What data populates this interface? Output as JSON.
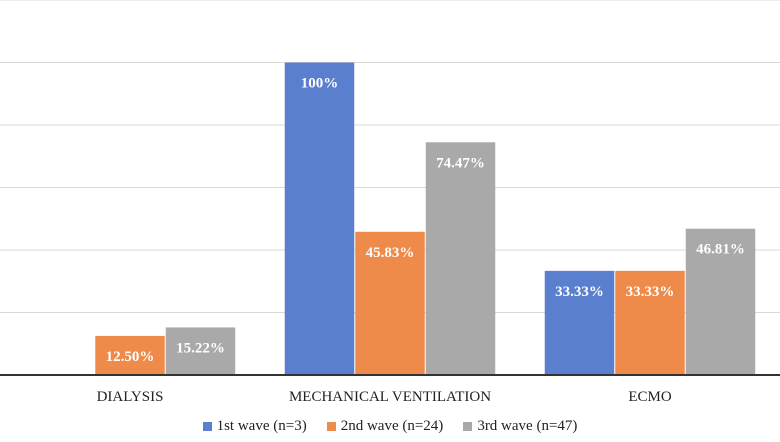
{
  "chart_data": {
    "type": "bar",
    "categories": [
      "DIALYSIS",
      "MECHANICAL VENTILATION",
      "ECMO"
    ],
    "series": [
      {
        "name": "1st wave (n=3)",
        "values": [
          0,
          100,
          33.33
        ],
        "labels": [
          "",
          "100%",
          "33.33%"
        ],
        "color": "#5b7fcf"
      },
      {
        "name": "2nd wave (n=24)",
        "values": [
          12.5,
          45.83,
          33.33
        ],
        "labels": [
          "12.50%",
          "45.83%",
          "33.33%"
        ],
        "color": "#ee8b4a"
      },
      {
        "name": "3rd wave (n=47)",
        "values": [
          15.22,
          74.47,
          46.81
        ],
        "labels": [
          "15.22%",
          "74.47%",
          "46.81%"
        ],
        "color": "#a9a9a9"
      }
    ],
    "ylim": [
      0,
      120
    ],
    "grid": true,
    "legend_position": "bottom"
  }
}
